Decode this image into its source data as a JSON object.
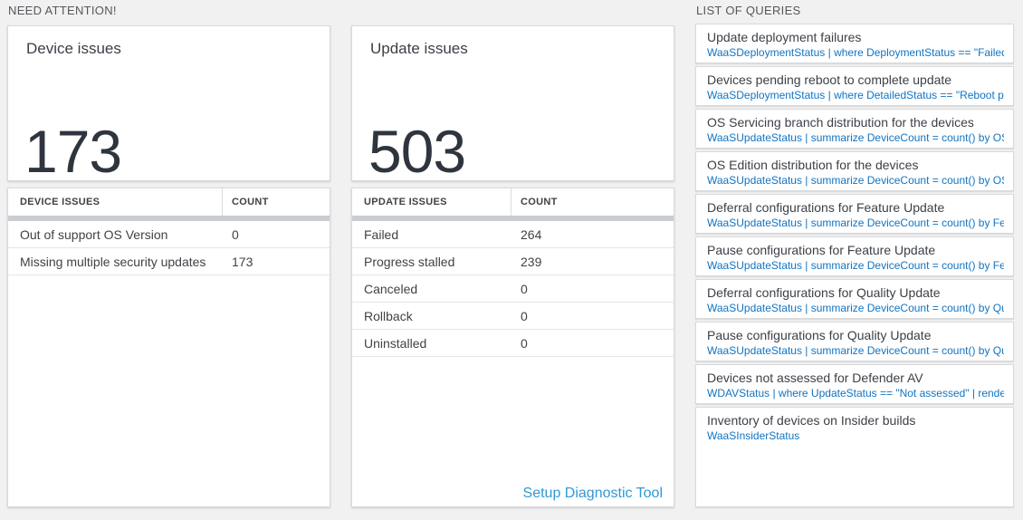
{
  "sections": {
    "need_attention": {
      "title": "NEED ATTENTION!"
    },
    "list_of_queries": {
      "title": "LIST OF QUERIES"
    }
  },
  "device_panel": {
    "card_title": "Device issues",
    "card_value": "173",
    "table": {
      "headers": [
        "DEVICE ISSUES",
        "COUNT"
      ],
      "rows": [
        {
          "label": "Out of support OS Version",
          "count": "0"
        },
        {
          "label": "Missing multiple security updates",
          "count": "173"
        }
      ]
    }
  },
  "update_panel": {
    "card_title": "Update issues",
    "card_value": "503",
    "table": {
      "headers": [
        "UPDATE ISSUES",
        "COUNT"
      ],
      "rows": [
        {
          "label": "Failed",
          "count": "264"
        },
        {
          "label": "Progress stalled",
          "count": "239"
        },
        {
          "label": "Canceled",
          "count": "0"
        },
        {
          "label": "Rollback",
          "count": "0"
        },
        {
          "label": "Uninstalled",
          "count": "0"
        }
      ]
    },
    "footer_link": "Setup Diagnostic Tool"
  },
  "queries": {
    "items": [
      {
        "title": "Update deployment failures",
        "query": "WaaSDeploymentStatus | where DeploymentStatus == \"Failed\" |..."
      },
      {
        "title": "Devices pending reboot to complete update",
        "query": "WaaSDeploymentStatus | where DetailedStatus == \"Reboot pend..."
      },
      {
        "title": "OS Servicing branch distribution for the devices",
        "query": "WaaSUpdateStatus | summarize DeviceCount = count() by OSSer..."
      },
      {
        "title": "OS Edition distribution for the devices",
        "query": "WaaSUpdateStatus | summarize DeviceCount = count() by OSEdit..."
      },
      {
        "title": "Deferral configurations for Feature Update",
        "query": "WaaSUpdateStatus | summarize DeviceCount = count() by Featur..."
      },
      {
        "title": "Pause configurations for Feature Update",
        "query": "WaaSUpdateStatus | summarize DeviceCount = count() by Featur..."
      },
      {
        "title": "Deferral configurations for Quality Update",
        "query": "WaaSUpdateStatus | summarize DeviceCount = count() by Qualit..."
      },
      {
        "title": "Pause configurations for Quality Update",
        "query": "WaaSUpdateStatus | summarize DeviceCount = count() by Qualit..."
      },
      {
        "title": "Devices not assessed for Defender AV",
        "query": "WDAVStatus | where UpdateStatus == \"Not assessed\" | render ta..."
      },
      {
        "title": "Inventory of devices on Insider builds",
        "query": "WaaSInsiderStatus"
      }
    ]
  },
  "colors": {
    "page_background": "#f1f1f2",
    "panel_border": "#d9d9d9",
    "header_separator_bar": "#c9cdd1",
    "query_code_blue": "#1174c2",
    "footer_link_blue": "#2e99d6",
    "big_number_color": "#2e353e"
  }
}
